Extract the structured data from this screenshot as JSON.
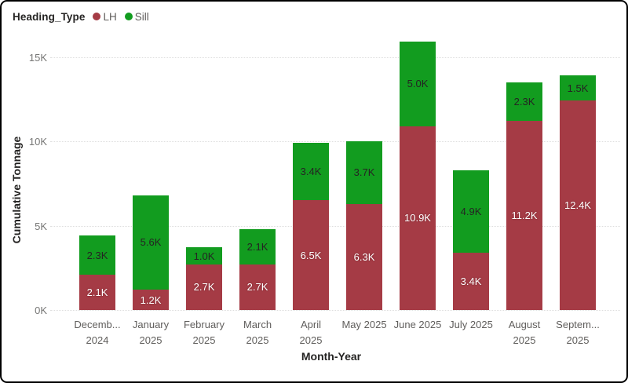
{
  "legend": {
    "title": "Heading_Type",
    "items": [
      {
        "label": "LH",
        "color": "#A53B45"
      },
      {
        "label": "Sill",
        "color": "#129C1F"
      }
    ]
  },
  "chart_data": {
    "type": "bar",
    "stacked": true,
    "title": "",
    "xlabel": "Month-Year",
    "ylabel": "Cumulative Tonnage",
    "ylim": [
      0,
      16000
    ],
    "grid": "dotted-horizontal",
    "legend_position": "top-left",
    "yticks": [
      {
        "value": 0,
        "label": "0K"
      },
      {
        "value": 5000,
        "label": "5K"
      },
      {
        "value": 10000,
        "label": "10K"
      },
      {
        "value": 15000,
        "label": "15K"
      }
    ],
    "categories": [
      {
        "lines": [
          "Decemb...",
          "2024"
        ]
      },
      {
        "lines": [
          "January",
          "2025"
        ]
      },
      {
        "lines": [
          "February",
          "2025"
        ]
      },
      {
        "lines": [
          "March",
          "2025"
        ]
      },
      {
        "lines": [
          "April",
          "2025"
        ]
      },
      {
        "lines": [
          "May 2025"
        ]
      },
      {
        "lines": [
          "June 2025"
        ]
      },
      {
        "lines": [
          "July 2025"
        ]
      },
      {
        "lines": [
          "August",
          "2025"
        ]
      },
      {
        "lines": [
          "Septem...",
          "2025"
        ]
      }
    ],
    "series": [
      {
        "name": "LH",
        "color": "#A53B45",
        "label_color": "#FFFFFF",
        "values": [
          2100,
          1200,
          2700,
          2700,
          6500,
          6300,
          10900,
          3400,
          11200,
          12400
        ],
        "labels": [
          "2.1K",
          "1.2K",
          "2.7K",
          "2.7K",
          "6.5K",
          "6.3K",
          "10.9K",
          "3.4K",
          "11.2K",
          "12.4K"
        ]
      },
      {
        "name": "Sill",
        "color": "#129C1F",
        "label_color": "#252423",
        "values": [
          2300,
          5600,
          1000,
          2100,
          3400,
          3700,
          5000,
          4900,
          2300,
          1500
        ],
        "labels": [
          "2.3K",
          "5.6K",
          "1.0K",
          "2.1K",
          "3.4K",
          "3.7K",
          "5.0K",
          "4.9K",
          "2.3K",
          "1.5K"
        ]
      }
    ]
  }
}
